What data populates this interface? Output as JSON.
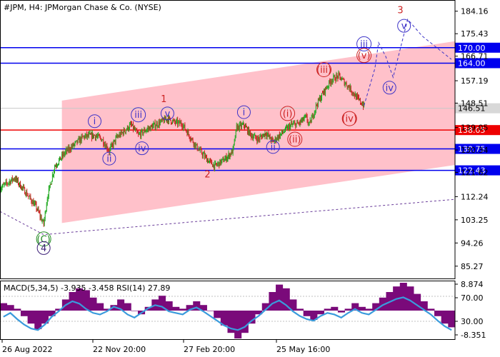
{
  "chart_data": {
    "type": "candlestick",
    "title": "#JPM, H4:  JPMorgan Chase & Co. (NYSE)",
    "price_axis": {
      "ylim": [
        80.5,
        188.5
      ],
      "ticks": [
        184.16,
        175.43,
        166.71,
        157.19,
        148.51,
        139.05,
        130.34,
        121.62,
        112.24,
        103.25,
        94.26,
        85.27
      ]
    },
    "time_axis": {
      "labels": [
        "26 Aug 2022",
        "22 Nov 20:00",
        "27 Feb 20:00",
        "25 May 16:00"
      ]
    },
    "levels": [
      {
        "value": 170.0,
        "label": "170.00",
        "color": "#0000ee"
      },
      {
        "value": 164.0,
        "label": "164.00",
        "color": "#0000ee"
      },
      {
        "value": 138.05,
        "label": "138.05",
        "color": "#ee0000"
      },
      {
        "value": 130.75,
        "label": "130.75",
        "color": "#0000ee"
      },
      {
        "value": 122.43,
        "label": "122.43",
        "color": "#0000ee"
      }
    ],
    "current_price": {
      "value": 146.51,
      "label": "146.51"
    },
    "channel": {
      "color": "#ffb6c1",
      "upper": [
        [
          17,
          149.5
        ],
        [
          125,
          172.5
        ]
      ],
      "lower": [
        [
          17,
          102.0
        ],
        [
          125,
          124.5
        ]
      ]
    },
    "trendline": [
      [
        0,
        106.5
      ],
      [
        12,
        97.5
      ],
      [
        125,
        111.2
      ]
    ],
    "price_path": [
      [
        0,
        115.5
      ],
      [
        4,
        119.5
      ],
      [
        7,
        114.0
      ],
      [
        10,
        108.0
      ],
      [
        12,
        101.5
      ],
      [
        13,
        112.0
      ],
      [
        15,
        124.0
      ],
      [
        18,
        129.5
      ],
      [
        23,
        135.5
      ],
      [
        26,
        136.0
      ],
      [
        28,
        134.5
      ],
      [
        30,
        130.0
      ],
      [
        32,
        135.0
      ],
      [
        36,
        140.0
      ],
      [
        38,
        136.0
      ],
      [
        40,
        138.0
      ],
      [
        44,
        141.0
      ],
      [
        46,
        142.5
      ],
      [
        48,
        141.0
      ],
      [
        50,
        140.5
      ],
      [
        52,
        136.0
      ],
      [
        54,
        131.5
      ],
      [
        57,
        126.5
      ],
      [
        59,
        124.0
      ],
      [
        62,
        127.0
      ],
      [
        64,
        130.0
      ],
      [
        65,
        139.0
      ],
      [
        67,
        140.0
      ],
      [
        69,
        136.0
      ],
      [
        71,
        134.5
      ],
      [
        73,
        137.0
      ],
      [
        75,
        133.5
      ],
      [
        76,
        135.0
      ],
      [
        78,
        137.5
      ],
      [
        80,
        140.0
      ],
      [
        82,
        140.5
      ],
      [
        84,
        143.0
      ],
      [
        85,
        140.0
      ],
      [
        87,
        148.0
      ],
      [
        89,
        153.0
      ],
      [
        91,
        157.5
      ],
      [
        93,
        159.0
      ],
      [
        96,
        154.5
      ],
      [
        98,
        150.5
      ],
      [
        100,
        147.5
      ]
    ],
    "forecast_path": [
      [
        100,
        147.5
      ],
      [
        103,
        162.0
      ],
      [
        104,
        172.0
      ],
      [
        106,
        166.5
      ],
      [
        108,
        158.5
      ],
      [
        112,
        181.0
      ],
      [
        116,
        174.5
      ],
      [
        124,
        165.5
      ]
    ],
    "waves": [
      {
        "label": "(C)",
        "x": 12,
        "y": 95.8,
        "color": "#228b22",
        "circle": true
      },
      {
        "label": "4",
        "x": 12,
        "y": 92.3,
        "color": "#3c1e78",
        "circle": true
      },
      {
        "label": "i",
        "x": 26,
        "y": 141.5,
        "color": "#3c32c8",
        "circle": true
      },
      {
        "label": "ii",
        "x": 30,
        "y": 127.0,
        "color": "#3c32c8",
        "circle": true
      },
      {
        "label": "iii",
        "x": 38,
        "y": 144.0,
        "color": "#3c32c8",
        "circle": true
      },
      {
        "label": "iv",
        "x": 39,
        "y": 131.0,
        "color": "#3c32c8",
        "circle": true
      },
      {
        "label": "1",
        "x": 45,
        "y": 150.2,
        "color": "#cc2222",
        "circle": false
      },
      {
        "label": "v",
        "x": 46,
        "y": 144.5,
        "color": "#3c32c8",
        "circle": true
      },
      {
        "label": "2",
        "x": 57,
        "y": 121.0,
        "color": "#cc2222",
        "circle": false
      },
      {
        "label": "i",
        "x": 67,
        "y": 145.0,
        "color": "#3c32c8",
        "circle": true
      },
      {
        "label": "ii",
        "x": 75,
        "y": 131.5,
        "color": "#3c32c8",
        "circle": true
      },
      {
        "label": "(i)",
        "x": 79,
        "y": 144.5,
        "color": "#cc2222",
        "circle": true
      },
      {
        "label": "(ii)",
        "x": 81,
        "y": 134.5,
        "color": "#cc2222",
        "circle": true
      },
      {
        "label": "(iii)",
        "x": 89,
        "y": 161.5,
        "color": "#cc2222",
        "circle": true
      },
      {
        "label": "(iv)",
        "x": 96,
        "y": 142.5,
        "color": "#cc2222",
        "circle": true
      },
      {
        "label": "iii",
        "x": 100,
        "y": 171.5,
        "color": "#3c32c8",
        "circle": true
      },
      {
        "label": "(v)",
        "x": 100,
        "y": 167.0,
        "color": "#cc2222",
        "circle": true
      },
      {
        "label": "iv",
        "x": 107,
        "y": 154.5,
        "color": "#3c32c8",
        "circle": true
      },
      {
        "label": "3",
        "x": 110,
        "y": 184.6,
        "color": "#cc2222",
        "circle": false
      },
      {
        "label": "v",
        "x": 111,
        "y": 178.5,
        "color": "#3c32c8",
        "circle": true
      }
    ],
    "macd_panel": {
      "label": "MACD(5,34,5) -3.935 -3.458 RSI(14) 27.89",
      "ticks": [
        "8.874",
        "70.00",
        "30.00",
        "-8.351"
      ],
      "histogram": [
        2.0,
        1.5,
        0.5,
        -1.5,
        -3.5,
        -5.0,
        -3.5,
        -1.5,
        0.5,
        3.0,
        5.0,
        6.0,
        5.5,
        3.5,
        2.0,
        0.5,
        1.5,
        3.0,
        2.0,
        0.0,
        -1.0,
        1.0,
        3.0,
        4.0,
        2.5,
        1.0,
        0.5,
        1.5,
        2.5,
        1.5,
        0.0,
        -2.0,
        -4.0,
        -6.0,
        -7.5,
        -6.0,
        -3.5,
        -1.0,
        2.0,
        5.0,
        7.0,
        6.0,
        3.0,
        0.5,
        -1.5,
        -2.5,
        -1.0,
        0.5,
        1.0,
        -0.5,
        0.5,
        2.0,
        1.0,
        0.5,
        2.0,
        3.5,
        5.0,
        6.5,
        7.5,
        6.5,
        4.5,
        2.5,
        0.5,
        -1.5,
        -3.5,
        -4.5
      ],
      "rsi": [
        45,
        50,
        42,
        35,
        30,
        28,
        35,
        45,
        52,
        60,
        65,
        62,
        55,
        50,
        48,
        52,
        58,
        55,
        48,
        44,
        50,
        56,
        60,
        58,
        52,
        50,
        48,
        54,
        57,
        52,
        46,
        40,
        34,
        30,
        28,
        32,
        40,
        46,
        54,
        62,
        66,
        60,
        52,
        46,
        42,
        40,
        46,
        50,
        48,
        44,
        50,
        55,
        50,
        48,
        54,
        60,
        64,
        68,
        70,
        66,
        60,
        54,
        48,
        40,
        33,
        28
      ]
    }
  }
}
